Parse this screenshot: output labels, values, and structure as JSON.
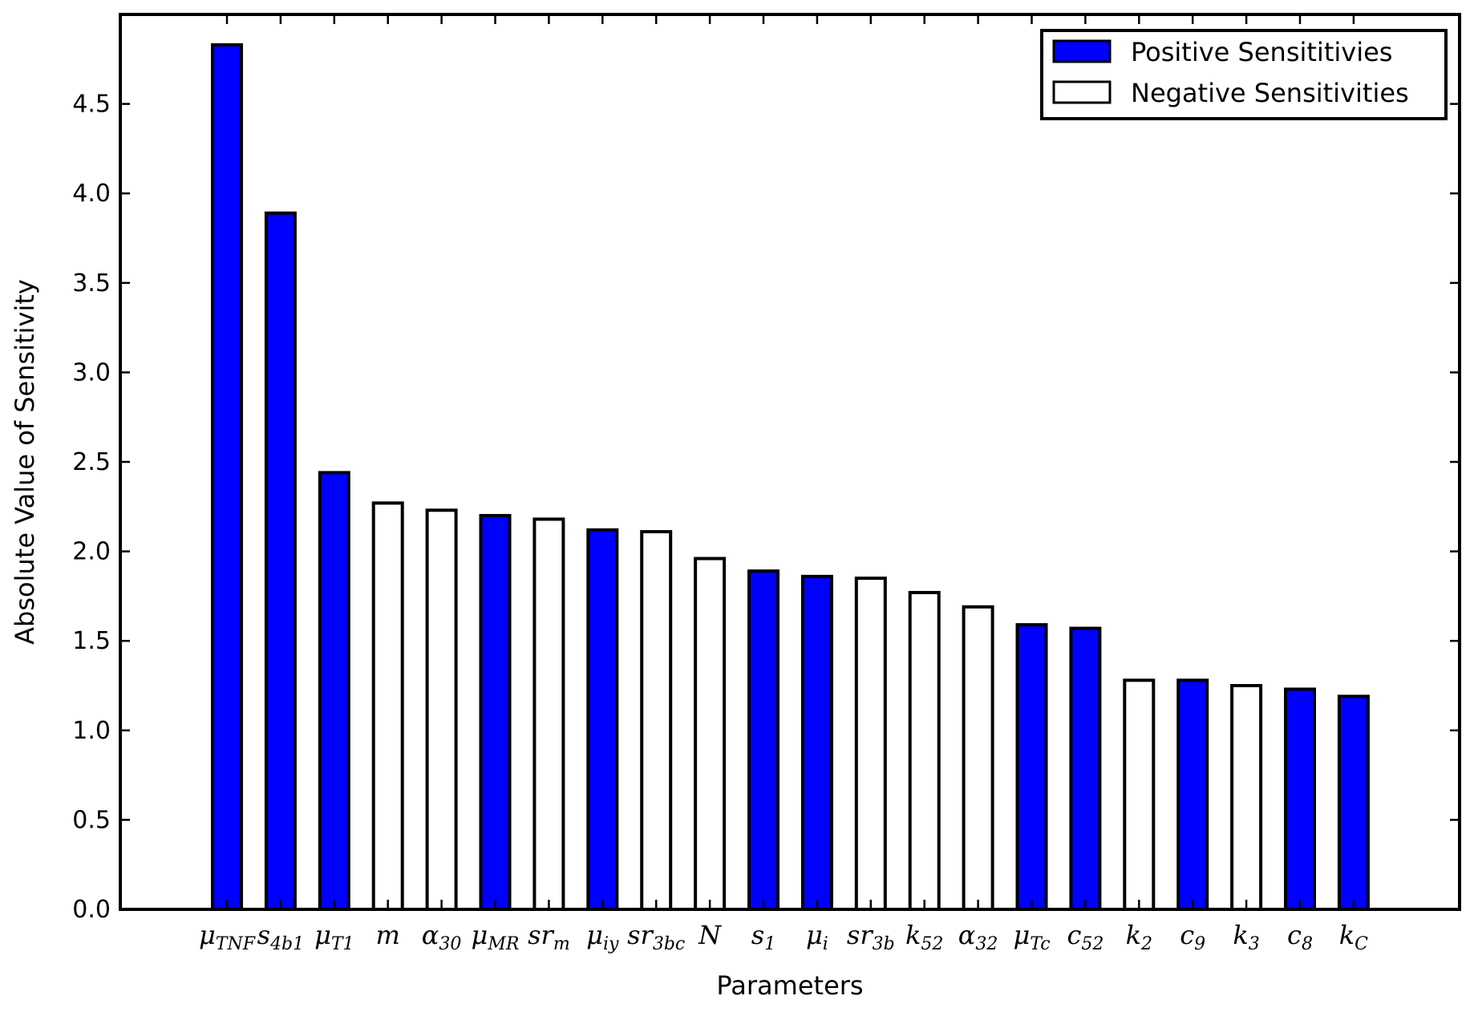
{
  "chart_data": {
    "type": "bar",
    "title": "",
    "xlabel": "Parameters",
    "ylabel": "Absolute Value of Sensitivity",
    "ylim": [
      0,
      5.0
    ],
    "yticks": [
      "0.0",
      "0.5",
      "1.0",
      "1.5",
      "2.0",
      "2.5",
      "3.0",
      "3.5",
      "4.0",
      "4.5"
    ],
    "categories": [
      {
        "base": "μ",
        "sub": "TNF"
      },
      {
        "base": "s",
        "sub": "4b1"
      },
      {
        "base": "μ",
        "sub": "T1"
      },
      {
        "base": "m",
        "sub": ""
      },
      {
        "base": "α",
        "sub": "30"
      },
      {
        "base": "μ",
        "sub": "MR"
      },
      {
        "base": "sr",
        "sub": "m"
      },
      {
        "base": "μ",
        "sub": "iy"
      },
      {
        "base": "sr",
        "sub": "3bc"
      },
      {
        "base": "N",
        "sub": ""
      },
      {
        "base": "s",
        "sub": "1"
      },
      {
        "base": "μ",
        "sub": "i"
      },
      {
        "base": "sr",
        "sub": "3b"
      },
      {
        "base": "k",
        "sub": "52"
      },
      {
        "base": "α",
        "sub": "32"
      },
      {
        "base": "μ",
        "sub": "Tc"
      },
      {
        "base": "c",
        "sub": "52"
      },
      {
        "base": "k",
        "sub": "2"
      },
      {
        "base": "c",
        "sub": "9"
      },
      {
        "base": "k",
        "sub": "3"
      },
      {
        "base": "c",
        "sub": "8"
      },
      {
        "base": "k",
        "sub": "C"
      }
    ],
    "values": [
      4.83,
      3.89,
      2.44,
      2.27,
      2.23,
      2.2,
      2.18,
      2.12,
      2.11,
      1.96,
      1.89,
      1.86,
      1.85,
      1.77,
      1.69,
      1.59,
      1.57,
      1.28,
      1.28,
      1.25,
      1.23,
      1.19
    ],
    "signs": [
      "positive",
      "positive",
      "positive",
      "negative",
      "negative",
      "positive",
      "negative",
      "positive",
      "negative",
      "negative",
      "positive",
      "positive",
      "negative",
      "negative",
      "negative",
      "positive",
      "positive",
      "negative",
      "positive",
      "negative",
      "positive",
      "positive"
    ],
    "legend": {
      "position": "top-right",
      "entries": [
        {
          "key": "positive",
          "label": "Positive Sensititivies",
          "color": "#0000ff"
        },
        {
          "key": "negative",
          "label": "Negative Sensitivities",
          "color": "#ffffff"
        }
      ]
    },
    "grid": false
  }
}
